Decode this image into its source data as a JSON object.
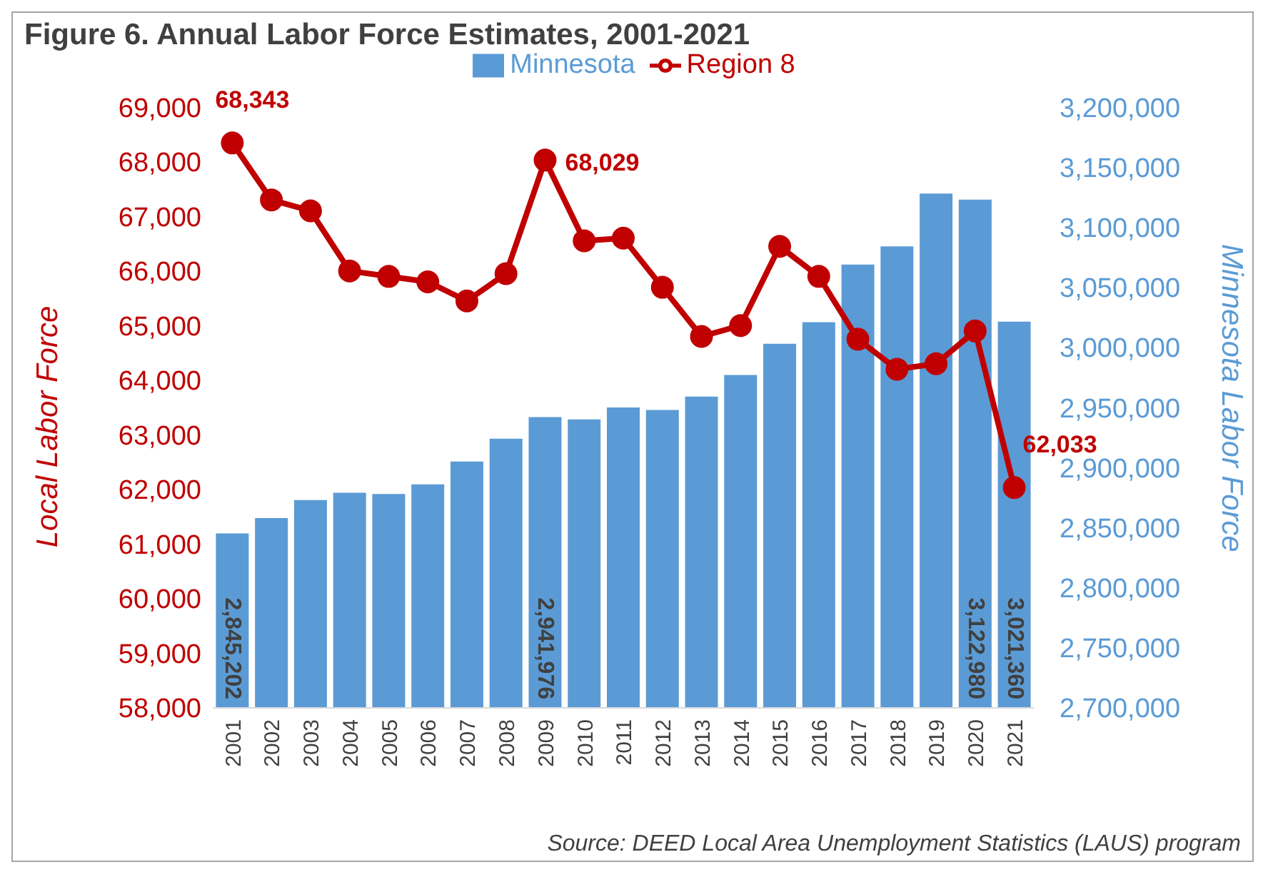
{
  "chart_data": {
    "type": "bar",
    "title": "Figure 6. Annual Labor Force Estimates, 2001-2021",
    "ylabel": "Local Labor Force",
    "y2label": "Minnesota Labor Force",
    "categories": [
      "2001",
      "2002",
      "2003",
      "2004",
      "2005",
      "2006",
      "2007",
      "2008",
      "2009",
      "2010",
      "2011",
      "2012",
      "2013",
      "2014",
      "2015",
      "2016",
      "2017",
      "2018",
      "2019",
      "2020",
      "2021"
    ],
    "series": [
      {
        "name": "Minnesota",
        "axis": "y2",
        "color": "#5b9bd5",
        "values": [
          2845202,
          2858000,
          2873000,
          2879000,
          2878000,
          2886000,
          2905000,
          2924000,
          2941976,
          2940000,
          2950000,
          2948000,
          2959000,
          2977000,
          3003000,
          3021000,
          3069000,
          3084000,
          3128000,
          3122980,
          3021360
        ],
        "value_labels": [
          "2,845,202",
          null,
          null,
          null,
          null,
          null,
          null,
          null,
          "2,941,976",
          null,
          null,
          null,
          null,
          null,
          null,
          null,
          null,
          null,
          null,
          "3,122,980",
          "3,021,360"
        ]
      },
      {
        "name": "Region 8",
        "type": "line",
        "color": "#c00000",
        "values": [
          68343,
          67300,
          67100,
          66000,
          65900,
          65800,
          65450,
          65950,
          68029,
          66550,
          66600,
          65700,
          64800,
          65000,
          66450,
          65900,
          64750,
          64200,
          64300,
          64900,
          62033
        ],
        "value_labels": [
          "68,343",
          null,
          null,
          null,
          null,
          null,
          null,
          null,
          "68,029",
          null,
          null,
          null,
          null,
          null,
          null,
          null,
          null,
          null,
          null,
          null,
          "62,033"
        ]
      }
    ],
    "ylim": [
      58000,
      69000
    ],
    "yticks": [
      {
        "value": 58000,
        "label": "58,000"
      },
      {
        "value": 59000,
        "label": "59,000"
      },
      {
        "value": 60000,
        "label": "60,000"
      },
      {
        "value": 61000,
        "label": "61,000"
      },
      {
        "value": 62000,
        "label": "62,000"
      },
      {
        "value": 63000,
        "label": "63,000"
      },
      {
        "value": 64000,
        "label": "64,000"
      },
      {
        "value": 65000,
        "label": "65,000"
      },
      {
        "value": 66000,
        "label": "66,000"
      },
      {
        "value": 67000,
        "label": "67,000"
      },
      {
        "value": 68000,
        "label": "68,000"
      },
      {
        "value": 69000,
        "label": "69,000"
      }
    ],
    "y2lim": [
      2700000,
      3200000
    ],
    "y2ticks": [
      {
        "value": 2700000,
        "label": "2,700,000"
      },
      {
        "value": 2750000,
        "label": "2,750,000"
      },
      {
        "value": 2800000,
        "label": "2,800,000"
      },
      {
        "value": 2850000,
        "label": "2,850,000"
      },
      {
        "value": 2900000,
        "label": "2,900,000"
      },
      {
        "value": 2950000,
        "label": "2,950,000"
      },
      {
        "value": 3000000,
        "label": "3,000,000"
      },
      {
        "value": 3050000,
        "label": "3,050,000"
      },
      {
        "value": 3100000,
        "label": "3,100,000"
      },
      {
        "value": 3150000,
        "label": "3,150,000"
      },
      {
        "value": 3200000,
        "label": "3,200,000"
      }
    ],
    "marker": "circle",
    "legend": "top",
    "grid": false,
    "annotations": [
      "Source: DEED Local Area Unemployment Statistics (LAUS) program"
    ]
  }
}
